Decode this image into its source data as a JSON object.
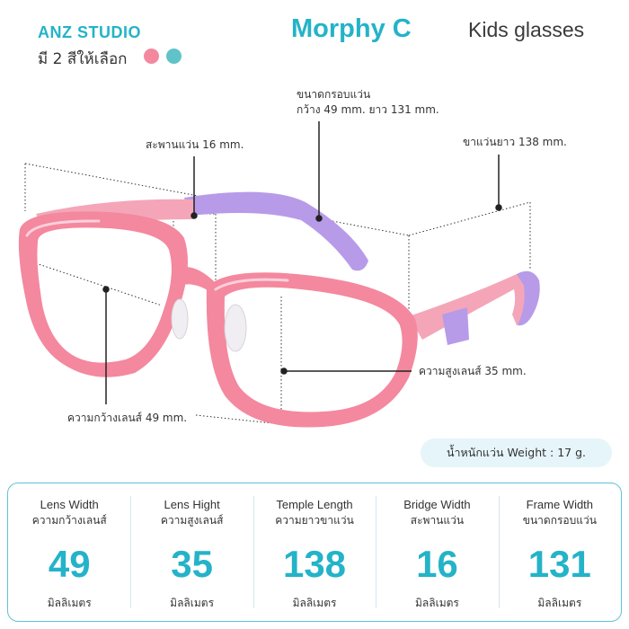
{
  "header": {
    "brand": "ANZ STUDIO",
    "colors_label": "มี 2 สีให้เลือก",
    "model": "Morphy C",
    "category": "Kids glasses"
  },
  "swatches": [
    {
      "name": "pink",
      "color": "#f4889e"
    },
    {
      "name": "teal",
      "color": "#5fc3c9"
    }
  ],
  "annotations": {
    "frame_size_line1": "ขนาดกรอบแว่น",
    "frame_size_line2": "กว้าง 49 mm. ยาว 131 mm.",
    "bridge": "สะพานแว่น 16 mm.",
    "temple": "ขาแว่นยาว 138 mm.",
    "lens_height": "ความสูงเลนส์ 35 mm.",
    "lens_width": "ความกว้างเลนส์ 49 mm."
  },
  "weight": "น้ำหนักแว่น Weight  : 17 g.",
  "specs": [
    {
      "en": "Lens Width",
      "th": "ความกว้างเลนส์",
      "value": "49",
      "unit": "มิลลิเมตร"
    },
    {
      "en": "Lens Hight",
      "th": "ความสูงเลนส์",
      "value": "35",
      "unit": "มิลลิเมตร"
    },
    {
      "en": "Temple Length",
      "th": "ความยาวขาแว่น",
      "value": "138",
      "unit": "มิลลิเมตร"
    },
    {
      "en": "Bridge Width",
      "th": "สะพานแว่น",
      "value": "16",
      "unit": "มิลลิเมตร"
    },
    {
      "en": "Frame Width",
      "th": "ขนาดกรอบแว่น",
      "value": "131",
      "unit": "มิลลิเมตร"
    }
  ],
  "colors": {
    "accent": "#24b3c8",
    "frame_pink": "#f4889e",
    "temple_purple": "#b79be8",
    "panel_border": "#5cc3d6"
  }
}
